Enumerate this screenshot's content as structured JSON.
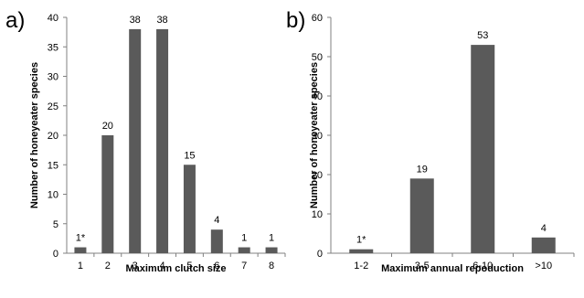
{
  "chart_data": [
    {
      "type": "bar",
      "panel": "a)",
      "categories": [
        "1",
        "2",
        "3",
        "4",
        "5",
        "6",
        "7",
        "8"
      ],
      "values": [
        1,
        20,
        38,
        38,
        15,
        4,
        1,
        1
      ],
      "data_labels": [
        "1*",
        "20",
        "38",
        "38",
        "15",
        "4",
        "1",
        "1"
      ],
      "xlabel": "Maximum clutch size",
      "ylabel": "Number of honeyeater species",
      "ylim": [
        0,
        40
      ],
      "yticks": [
        0,
        5,
        10,
        15,
        20,
        25,
        30,
        35,
        40
      ],
      "grid": false,
      "bar_color": "#5a5a5a"
    },
    {
      "type": "bar",
      "panel": "b)",
      "categories": [
        "1-2",
        "3-5",
        "6-10",
        ">10"
      ],
      "values": [
        1,
        19,
        53,
        4
      ],
      "data_labels": [
        "1*",
        "19",
        "53",
        "4"
      ],
      "xlabel": "Maximum annual repoduction",
      "ylabel": "Number of honeyeater species",
      "ylim": [
        0,
        60
      ],
      "yticks": [
        0,
        10,
        20,
        30,
        40,
        50,
        60
      ],
      "grid": false,
      "bar_color": "#5a5a5a"
    }
  ]
}
